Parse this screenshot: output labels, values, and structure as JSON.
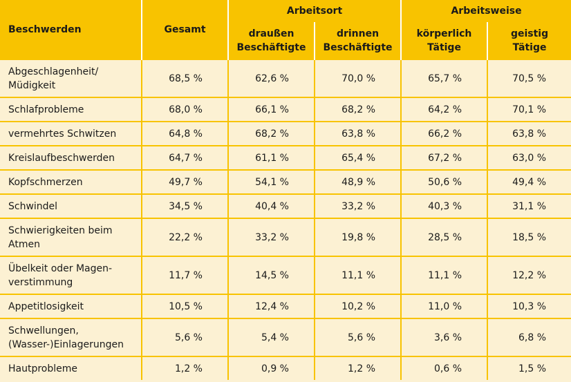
{
  "table": {
    "header": {
      "row_label": "Beschwerden",
      "total": "Gesamt",
      "groups": [
        {
          "label": "Arbeitsort",
          "columns": [
            "draußen\nBeschäftigte",
            "drinnen\nBeschäftigte"
          ]
        },
        {
          "label": "Arbeitsweise",
          "columns": [
            "körperlich\nTätige",
            "geistig\nTätige"
          ]
        }
      ]
    },
    "rows": [
      [
        "Abgeschlagenheit/\nMüdigkeit",
        "68,5 %",
        "62,6 %",
        "70,0 %",
        "65,7 %",
        "70,5 %"
      ],
      [
        "Schlafprobleme",
        "68,0 %",
        "66,1 %",
        "68,2 %",
        "64,2 %",
        "70,1 %"
      ],
      [
        "vermehrtes Schwitzen",
        "64,8 %",
        "68,2 %",
        "63,8 %",
        "66,2 %",
        "63,8 %"
      ],
      [
        "Kreislaufbeschwerden",
        "64,7 %",
        "61,1 %",
        "65,4 %",
        "67,2 %",
        "63,0 %"
      ],
      [
        "Kopfschmerzen",
        "49,7 %",
        "54,1 %",
        "48,9 %",
        "50,6 %",
        "49,4 %"
      ],
      [
        "Schwindel",
        "34,5 %",
        "40,4 %",
        "33,2 %",
        "40,3 %",
        "31,1 %"
      ],
      [
        "Schwierigkeiten beim\nAtmen",
        "22,2 %",
        "33,2 %",
        "19,8 %",
        "28,5 %",
        "18,5 %"
      ],
      [
        "Übelkeit oder Magen-\nverstimmung",
        "11,7 %",
        "14,5 %",
        "11,1 %",
        "11,1 %",
        "12,2 %"
      ],
      [
        "Appetitlosigkeit",
        "10,5 %",
        "12,4 %",
        "10,2 %",
        "11,0 %",
        "10,3 %"
      ],
      [
        "Schwellungen,\n(Wasser-)Einlagerungen",
        "5,6 %",
        "5,4 %",
        "5,6 %",
        "3,6 %",
        "6,8 %"
      ],
      [
        "Hautprobleme",
        "1,2 %",
        "0,9 %",
        "1,2 %",
        "0,6 %",
        "1,5 %"
      ]
    ]
  }
}
